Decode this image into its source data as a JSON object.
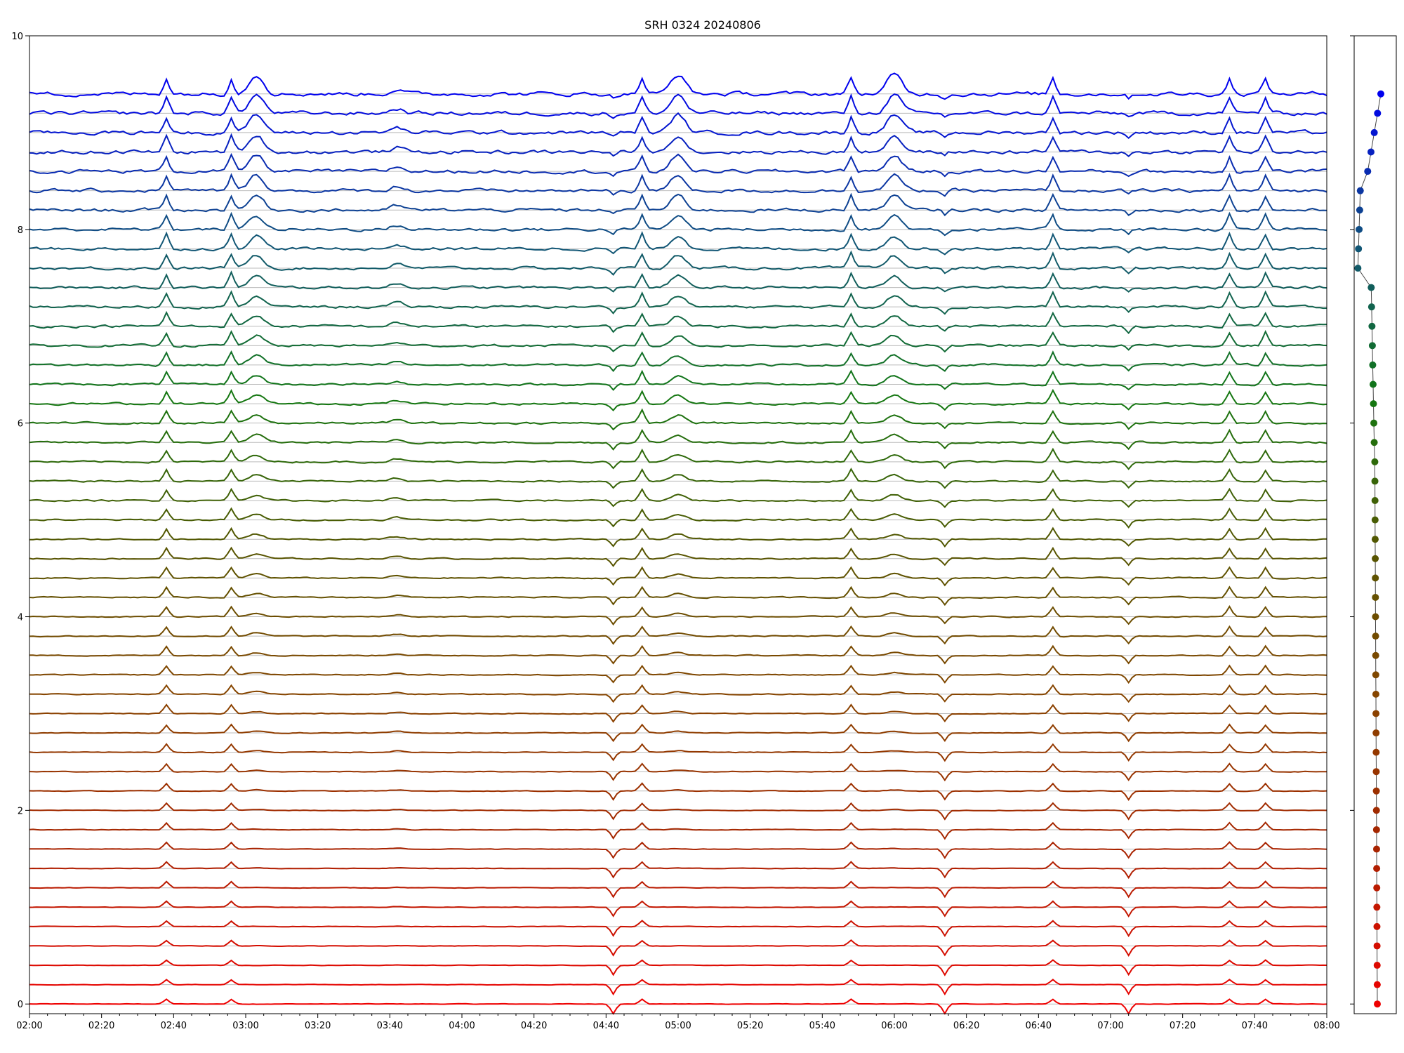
{
  "chart_data": {
    "type": "line",
    "title": "SRH 0324 20240806",
    "xlabel": "",
    "ylabel": "",
    "xlim": [
      "02:00",
      "08:00"
    ],
    "ylim": [
      -0.1,
      10
    ],
    "x_ticks": [
      "02:00",
      "02:20",
      "02:40",
      "03:00",
      "03:20",
      "03:40",
      "04:00",
      "04:20",
      "04:40",
      "05:00",
      "05:20",
      "05:40",
      "06:00",
      "06:20",
      "06:40",
      "07:00",
      "07:20",
      "07:40",
      "08:00"
    ],
    "y_ticks": [
      "0",
      "2",
      "4",
      "6",
      "8",
      "10"
    ],
    "grid": "horizontal lines at each trace baseline",
    "legend": "none",
    "color_gradient": {
      "low": "#ee0000",
      "mid_red": "#aa2200",
      "brown": "#884400",
      "olive": "#555500",
      "green": "#117711",
      "teal": "#115577",
      "high": "#0000ee"
    },
    "series_count": 48,
    "baseline_step": 0.2,
    "events": [
      {
        "time": "02:38",
        "kind": "spike"
      },
      {
        "time": "02:56",
        "kind": "spike"
      },
      {
        "time": "03:03",
        "kind": "burst"
      },
      {
        "time": "03:42",
        "kind": "bump"
      },
      {
        "time": "04:42",
        "kind": "dip"
      },
      {
        "time": "04:50",
        "kind": "spike"
      },
      {
        "time": "05:00",
        "kind": "burst"
      },
      {
        "time": "05:48",
        "kind": "spike"
      },
      {
        "time": "06:00",
        "kind": "burst"
      },
      {
        "time": "06:14",
        "kind": "dip"
      },
      {
        "time": "06:44",
        "kind": "spike"
      },
      {
        "time": "07:05",
        "kind": "dip"
      },
      {
        "time": "07:33",
        "kind": "spike"
      },
      {
        "time": "07:43",
        "kind": "spike"
      }
    ],
    "side_panel": {
      "type": "scatter",
      "series": "per-trace markers",
      "points": 48,
      "color_from": "#ee0000",
      "color_to": "#0000ee"
    }
  }
}
